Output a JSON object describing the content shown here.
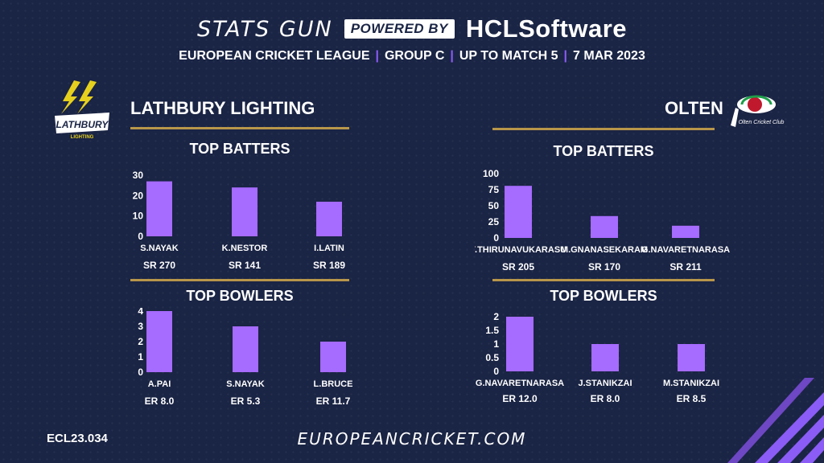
{
  "header": {
    "brand": "STATS GUN",
    "powered_by": "POWERED BY",
    "sponsor": "HCLSoftware",
    "sub": {
      "league": "EUROPEAN CRICKET LEAGUE",
      "group": "GROUP  C",
      "match": "UP TO MATCH  5",
      "date": "7 MAR 2023"
    }
  },
  "teams": {
    "left": {
      "name": "LATHBURY LIGHTING",
      "logo_text": "LATHBURY",
      "logo_subtext": "LIGHTING"
    },
    "right": {
      "name": "OLTEN",
      "logo_text": "Olten Cricket Club"
    }
  },
  "sections": {
    "top_batters": "TOP BATTERS",
    "top_bowlers": "TOP BOWLERS"
  },
  "colors": {
    "bar": "#a66bff",
    "gold": "#b8964a",
    "accent": "#8b5cf6",
    "background": "#1a2444"
  },
  "icons": [
    "lightning-bolt-logo-icon",
    "cricket-club-logo-icon",
    "diagonal-stripes-decoration"
  ],
  "chart_data": [
    {
      "id": "left-batters",
      "type": "bar",
      "title": "TOP BATTERS",
      "categories": [
        "S.NAYAK",
        "K.NESTOR",
        "I.LATIN"
      ],
      "values": [
        27,
        24,
        17
      ],
      "sub_labels": [
        "SR 270",
        "SR 141",
        "SR 189"
      ],
      "ylim": [
        0,
        30
      ],
      "yticks": [
        "0",
        "10",
        "20",
        "30"
      ],
      "grid": false
    },
    {
      "id": "left-bowlers",
      "type": "bar",
      "title": "TOP BOWLERS",
      "categories": [
        "A.PAI",
        "S.NAYAK",
        "L.BRUCE"
      ],
      "values": [
        4,
        3,
        2
      ],
      "sub_labels": [
        "ER 8.0",
        "ER 5.3",
        "ER 11.7"
      ],
      "ylim": [
        0,
        4
      ],
      "yticks": [
        "0",
        "1",
        "2",
        "3",
        "4"
      ],
      "grid": false
    },
    {
      "id": "right-batters",
      "type": "bar",
      "title": "TOP BATTERS",
      "categories": [
        "Y.THIRUNAVUKARASU",
        "M.GNANASEKARAM",
        "G.NAVARETNARASA"
      ],
      "values": [
        81,
        34,
        19
      ],
      "sub_labels": [
        "SR 205",
        "SR 170",
        "SR 211"
      ],
      "ylim": [
        0,
        100
      ],
      "yticks": [
        "0",
        "25",
        "50",
        "75",
        "100"
      ],
      "grid": false
    },
    {
      "id": "right-bowlers",
      "type": "bar",
      "title": "TOP BOWLERS",
      "categories": [
        "G.NAVARETNARASA",
        "J.STANIKZAI",
        "M.STANIKZAI"
      ],
      "values": [
        2,
        1,
        1
      ],
      "sub_labels": [
        "ER 12.0",
        "ER 8.0",
        "ER 8.5"
      ],
      "ylim": [
        0,
        2
      ],
      "yticks": [
        "0",
        "0.5",
        "1",
        "1.5",
        "2"
      ],
      "grid": false
    }
  ],
  "footer": {
    "code": "ECL23.034",
    "url": "EUROPEANCRICKET.COM"
  }
}
